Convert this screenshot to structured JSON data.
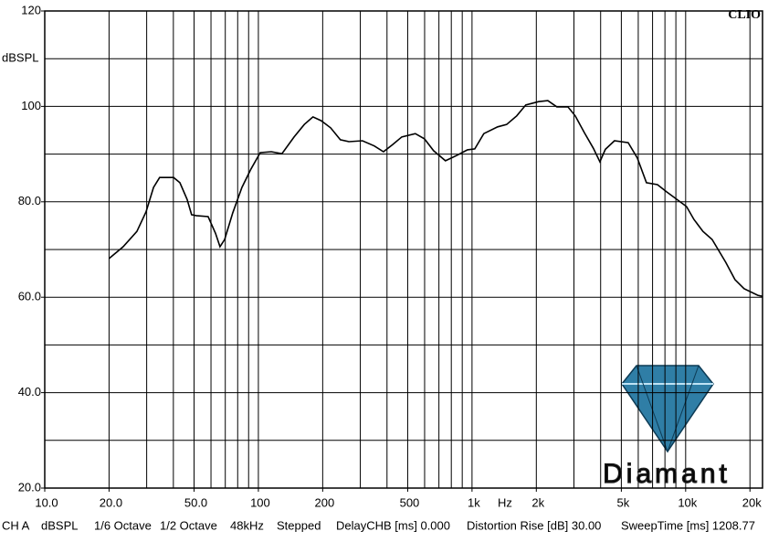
{
  "chart_data": {
    "type": "line",
    "brand": "CLIO",
    "logo_text": "Diamant",
    "ylabel": "dBSPL",
    "xlabel": "Hz",
    "log_x": true,
    "grid": true,
    "xlim": [
      10,
      22900
    ],
    "ylim": [
      20,
      120
    ],
    "xticks": [
      {
        "value": 10,
        "label": "10.0"
      },
      {
        "value": 20,
        "label": "20.0"
      },
      {
        "value": 50,
        "label": "50.0"
      },
      100,
      200,
      500,
      {
        "value": 1000,
        "label": "1k"
      },
      {
        "value": 2000,
        "label": "2k"
      },
      {
        "value": 5000,
        "label": "5k"
      },
      {
        "value": 10000,
        "label": "10k"
      },
      {
        "value": 20000,
        "label": "20k"
      }
    ],
    "xgrid": [
      20,
      30,
      40,
      50,
      60,
      70,
      80,
      90,
      100,
      200,
      300,
      400,
      500,
      600,
      700,
      800,
      900,
      1000,
      2000,
      3000,
      4000,
      5000,
      6000,
      7000,
      8000,
      9000,
      10000,
      20000
    ],
    "yticks": [
      {
        "value": 20,
        "label": "20.0"
      },
      {
        "value": 40,
        "label": "40.0"
      },
      {
        "value": 60,
        "label": "60.0"
      },
      {
        "value": 80,
        "label": "80.0"
      },
      100,
      120
    ],
    "ygrid": [
      30,
      40,
      50,
      60,
      70,
      80,
      90,
      100,
      110
    ],
    "series": [
      {
        "color": "#000000",
        "x": [
          20,
          23.3,
          27,
          29.8,
          32.3,
          34.5,
          40.1,
          42.9,
          46.4,
          48.7,
          51.2,
          58.2,
          63,
          66.1,
          69.5,
          75.9,
          83.7,
          92.4,
          102,
          115,
          129,
          147,
          164,
          180,
          197,
          218,
          242,
          265,
          307,
          349,
          385,
          425,
          469,
          543,
          599,
          661,
          751,
          846,
          952,
          1030,
          1136,
          1318,
          1453,
          1619,
          1786,
          2050,
          2263,
          2496,
          2811,
          3041,
          3357,
          3701,
          3966,
          4207,
          4645,
          5383,
          5941,
          6553,
          7376,
          8133,
          8974,
          10100,
          10930,
          12050,
          13300,
          15410,
          17010,
          18780,
          21770,
          22860
        ],
        "values": [
          68.1,
          70.6,
          73.8,
          77.9,
          83.0,
          85.1,
          85.1,
          84.0,
          80.5,
          77.3,
          77.1,
          76.9,
          73.4,
          70.6,
          72.1,
          77.7,
          83.0,
          86.9,
          90.3,
          90.5,
          90.1,
          93.6,
          96.2,
          97.8,
          97.0,
          95.5,
          93.0,
          92.6,
          92.8,
          91.7,
          90.5,
          92.0,
          93.6,
          94.3,
          93.2,
          90.7,
          88.6,
          89.7,
          90.9,
          91.1,
          94.3,
          95.7,
          96.2,
          98.0,
          100.3,
          101.0,
          101.2,
          99.9,
          99.9,
          98.0,
          94.5,
          91.2,
          88.4,
          91.0,
          92.8,
          92.4,
          89.2,
          84.0,
          83.6,
          82.1,
          80.7,
          79.0,
          76.3,
          73.8,
          72.1,
          67.3,
          63.7,
          61.8,
          60.4,
          60.2
        ]
      }
    ],
    "footer": [
      "CH A",
      "dBSPL",
      "1/6 Octave",
      "1/2 Octave",
      "48kHz",
      "Stepped",
      "DelayCHB [ms] 0.000",
      "Distortion Rise [dB] 30.00",
      "SweepTime [ms] 1208.77"
    ]
  }
}
